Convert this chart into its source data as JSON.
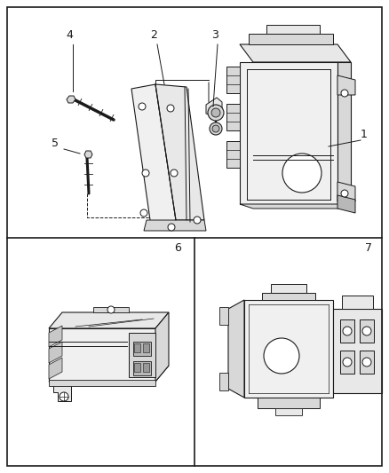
{
  "bg_color": "#ffffff",
  "line_color": "#1a1a1a",
  "fig_width": 4.38,
  "fig_height": 5.33,
  "dpi": 100,
  "gray_light": "#f0f0f0",
  "gray_mid": "#d8d8d8",
  "gray_dark": "#b8b8b8",
  "gray_face": "#e8e8e8",
  "gray_side": "#c8c8c8"
}
